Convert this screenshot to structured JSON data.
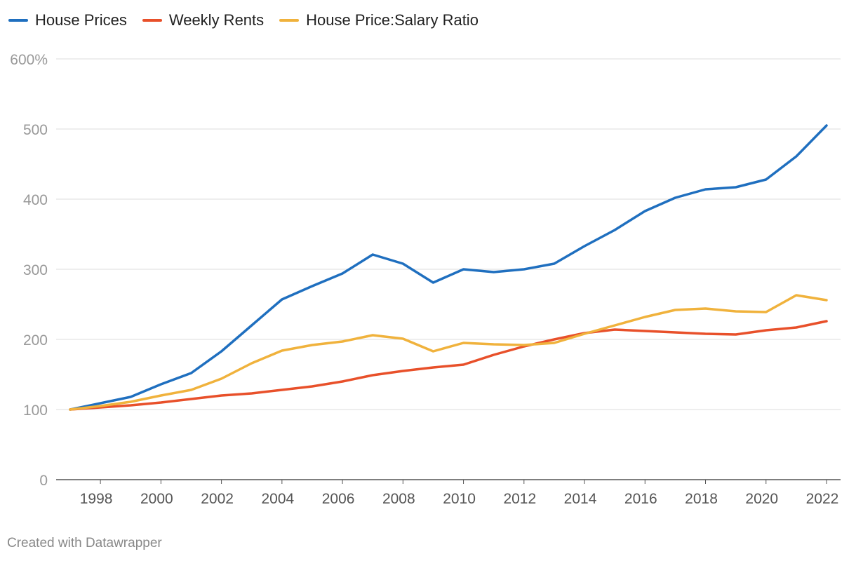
{
  "chart_data": {
    "type": "line",
    "x": [
      1997,
      1998,
      1999,
      2000,
      2001,
      2002,
      2003,
      2004,
      2005,
      2006,
      2007,
      2008,
      2009,
      2010,
      2011,
      2012,
      2013,
      2014,
      2015,
      2016,
      2017,
      2018,
      2019,
      2020,
      2021,
      2022
    ],
    "series": [
      {
        "name": "House Prices",
        "color": "#1f6fbf",
        "values": [
          100,
          109,
          118,
          136,
          152,
          183,
          220,
          257,
          276,
          294,
          321,
          308,
          281,
          300,
          296,
          300,
          308,
          333,
          356,
          383,
          402,
          414,
          417,
          428,
          461,
          505
        ]
      },
      {
        "name": "Weekly Rents",
        "color": "#e8502a",
        "values": [
          100,
          103,
          106,
          110,
          115,
          120,
          123,
          128,
          133,
          140,
          149,
          155,
          160,
          164,
          178,
          190,
          200,
          209,
          214,
          212,
          210,
          208,
          207,
          213,
          217,
          226
        ]
      },
      {
        "name": "House Price:Salary Ratio",
        "color": "#f0b23c",
        "values": [
          100,
          105,
          111,
          120,
          128,
          144,
          166,
          184,
          192,
          197,
          206,
          201,
          183,
          195,
          193,
          192,
          195,
          208,
          220,
          232,
          242,
          244,
          240,
          239,
          263,
          256
        ]
      }
    ],
    "xticks": [
      "1998",
      "2000",
      "2002",
      "2004",
      "2006",
      "2008",
      "2010",
      "2012",
      "2014",
      "2016",
      "2018",
      "2020",
      "2022"
    ],
    "yticks": [
      "0",
      "100",
      "200",
      "300",
      "400",
      "500",
      "600%"
    ],
    "ylim": [
      0,
      600
    ],
    "xlim": [
      1997,
      2022
    ],
    "grid": "horizontal",
    "legend_position": "top-left"
  },
  "credit": "Created with Datawrapper"
}
